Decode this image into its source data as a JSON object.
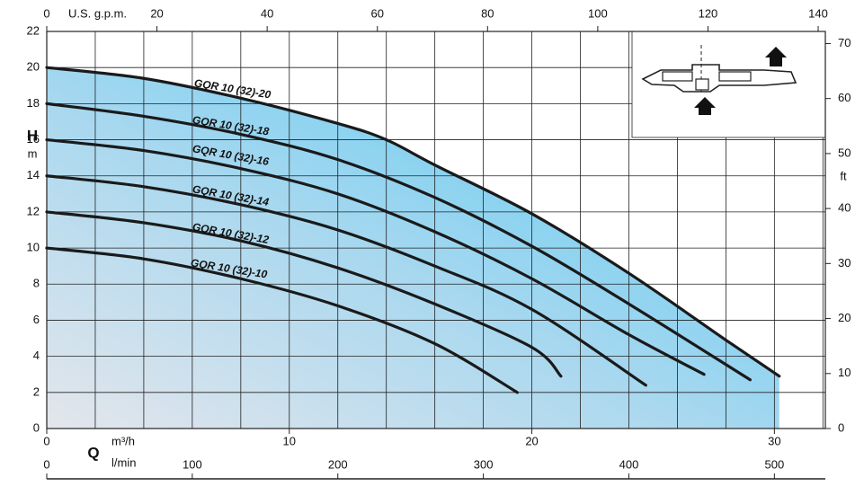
{
  "chart_data": {
    "type": "line",
    "y_label": "H",
    "y_unit": "m",
    "y2_unit": "ft",
    "x_label": "Q",
    "x_unit": "m³/h",
    "x3_unit": "l/min",
    "x2_unit": "U.S. g.p.m.",
    "xlim": [
      0,
      32.1
    ],
    "xticks": [
      0,
      10,
      20,
      30
    ],
    "xgrid": [
      2,
      4,
      6,
      8,
      10,
      12,
      14,
      16,
      18,
      20,
      22,
      24,
      26,
      28,
      30,
      32
    ],
    "x2lim": [
      0,
      141.3
    ],
    "x2ticks": [
      0,
      20,
      40,
      60,
      80,
      100,
      120,
      140
    ],
    "x3lim": [
      0,
      535
    ],
    "x3ticks": [
      0,
      100,
      200,
      300,
      400,
      500
    ],
    "ylim": [
      0,
      22
    ],
    "yticks": [
      0,
      2,
      4,
      6,
      8,
      10,
      12,
      14,
      16,
      18,
      20,
      22
    ],
    "y2lim": [
      0,
      72.2
    ],
    "y2ticks": [
      0,
      10,
      20,
      30,
      40,
      50,
      60,
      70
    ],
    "grid": true,
    "series": [
      {
        "name": "GQR 10 (32)-20",
        "color": "#1a1a1a",
        "x": [
          0,
          4,
          8,
          12,
          14,
          16,
          20,
          24,
          28,
          30.2
        ],
        "values": [
          20,
          19.4,
          18.3,
          16.9,
          16.0,
          14.6,
          11.9,
          8.6,
          4.9,
          2.9
        ]
      },
      {
        "name": "GQR 10 (32)-18",
        "color": "#1a1a1a",
        "x": [
          0,
          4,
          8,
          12,
          16,
          20,
          24,
          29.0
        ],
        "values": [
          18,
          17.3,
          16.3,
          14.9,
          12.8,
          10.1,
          6.9,
          2.7
        ]
      },
      {
        "name": "GQR 10 (32)-16",
        "color": "#1a1a1a",
        "x": [
          0,
          4,
          8,
          12,
          16,
          20,
          24,
          27.1
        ],
        "values": [
          16,
          15.4,
          14.4,
          13.0,
          10.9,
          8.3,
          5.2,
          3.0
        ]
      },
      {
        "name": "GQR 10 (32)-14",
        "color": "#1a1a1a",
        "x": [
          0,
          4,
          8,
          12,
          16,
          20,
          24.7
        ],
        "values": [
          14,
          13.4,
          12.4,
          11.0,
          9.0,
          6.6,
          2.4
        ]
      },
      {
        "name": "GQR 10 (32)-12",
        "color": "#1a1a1a",
        "x": [
          0,
          4,
          8,
          12,
          16,
          20,
          21.2
        ],
        "values": [
          12,
          11.4,
          10.4,
          8.9,
          6.9,
          4.5,
          2.9
        ]
      },
      {
        "name": "GQR 10 (32)-10",
        "color": "#1a1a1a",
        "x": [
          0,
          4,
          8,
          12,
          16,
          19.4
        ],
        "values": [
          10,
          9.4,
          8.3,
          6.8,
          4.7,
          2.0
        ]
      }
    ]
  }
}
